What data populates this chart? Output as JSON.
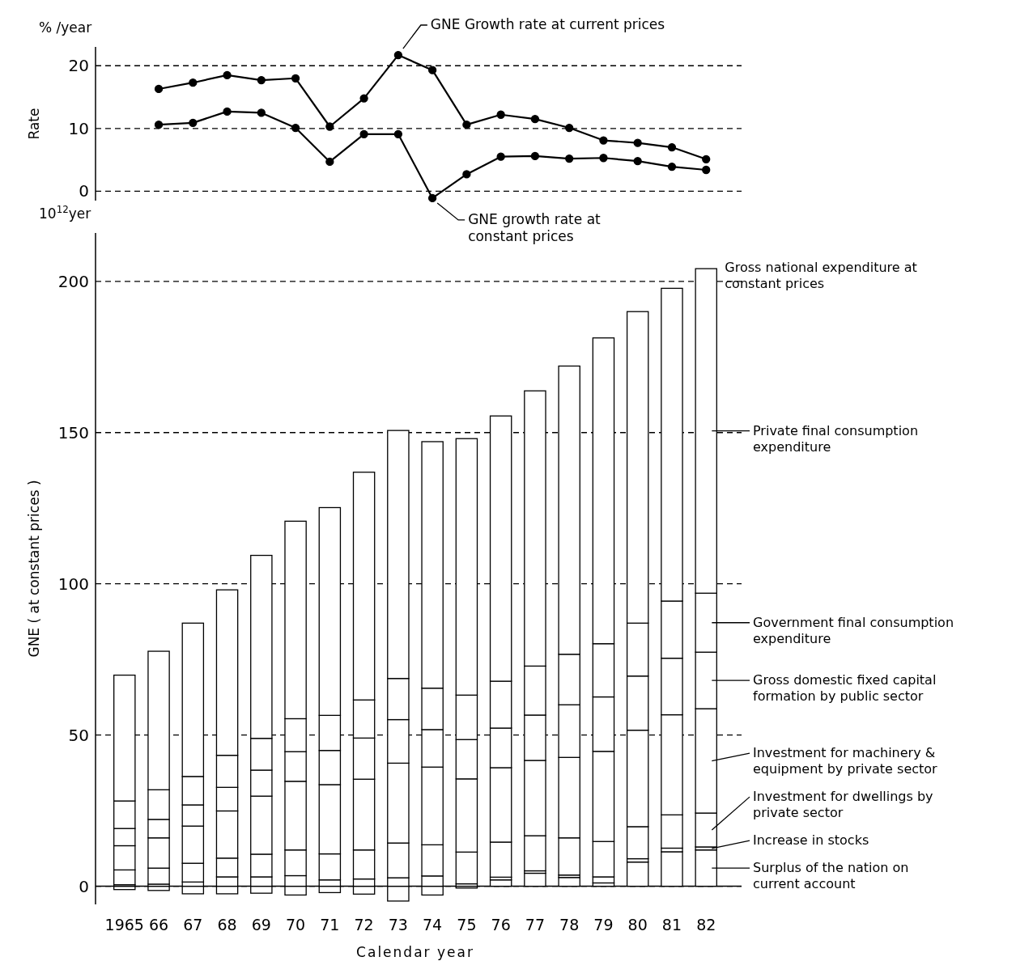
{
  "chart_data": [
    {
      "type": "line",
      "ylabel": "Rate",
      "annotations": [
        "% /year"
      ],
      "categories": [
        null,
        null,
        null,
        null,
        null,
        null,
        null,
        null,
        null,
        null,
        null,
        null,
        null,
        null,
        null,
        null,
        null,
        null
      ],
      "series": [
        {
          "name": "GNE Growth rate at current prices",
          "color": "#000000",
          "values": [
            null,
            16.3,
            17.3,
            18.5,
            17.7,
            18.0,
            10.3,
            14.8,
            21.7,
            19.3,
            10.6,
            12.2,
            11.5,
            10.1,
            8.1,
            7.7,
            7.0,
            5.1
          ]
        },
        {
          "name": "GNE growth rate at constant prices",
          "color": "#000000",
          "values": [
            null,
            10.6,
            10.9,
            12.7,
            12.5,
            10.1,
            4.7,
            9.1,
            9.1,
            -1.1,
            2.7,
            5.5,
            5.6,
            5.2,
            5.3,
            4.8,
            3.9,
            3.4
          ]
        }
      ],
      "ylim": [
        -1.5,
        23
      ],
      "yticks": [
        0,
        10,
        20
      ],
      "grid": "y",
      "marker": "circle",
      "tick_labels": "y"
    },
    {
      "type": "bar",
      "stacked": true,
      "xlabel": "Calendar year",
      "ylabel": "GNE ( at constant prices )",
      "annotations": [
        "10$^{12}$yer",
        {
          "text": "Gross national expenditure at constant prices",
          "x": "82",
          "y": 204.2
        }
      ],
      "categories": [
        "1965",
        "66",
        "67",
        "68",
        "69",
        "70",
        "71",
        "72",
        "73",
        "74",
        "75",
        "76",
        "77",
        "78",
        "79",
        "80",
        "81",
        "82"
      ],
      "series": [
        {
          "name": "Surplus of the nation on current account",
          "color": "#ffffff",
          "values": [
            -1.1,
            -1.4,
            -2.5,
            -2.5,
            -2.3,
            -2.9,
            -2.1,
            -2.6,
            -4.9,
            -2.9,
            -0.6,
            2.1,
            4.3,
            2.9,
            1.1,
            8.0,
            11.4,
            12.0
          ]
        },
        {
          "name": "Increase in stocks",
          "color": "#ffffff",
          "values": [
            0.5,
            0.7,
            1.4,
            3.1,
            3.1,
            3.5,
            2.1,
            2.4,
            2.8,
            3.4,
            0.8,
            0.9,
            0.8,
            0.8,
            2.0,
            1.1,
            1.2,
            1.0
          ]
        },
        {
          "name": "Investment for dwellings by private sector",
          "color": "#ffffff",
          "values": [
            4.9,
            5.3,
            6.2,
            6.2,
            7.5,
            8.5,
            8.6,
            9.6,
            11.5,
            10.3,
            10.5,
            11.6,
            11.6,
            12.3,
            11.7,
            10.6,
            11.0,
            11.2
          ]
        },
        {
          "name": "Investment for machinery & equipment by private sector",
          "color": "#ffffff",
          "values": [
            8.0,
            10.0,
            12.3,
            15.6,
            19.2,
            22.7,
            22.9,
            23.4,
            26.4,
            25.7,
            24.2,
            24.6,
            24.9,
            26.6,
            29.8,
            31.9,
            33.1,
            34.5
          ]
        },
        {
          "name": "Gross domestic fixed capital formation by public sector",
          "color": "#ffffff",
          "values": [
            5.7,
            6.1,
            7.0,
            7.8,
            8.6,
            9.8,
            11.3,
            13.6,
            14.4,
            12.4,
            13.0,
            13.1,
            15.0,
            17.4,
            18.0,
            17.9,
            18.7,
            18.7
          ]
        },
        {
          "name": "Government final consumption expenditure",
          "color": "#ffffff",
          "values": [
            9.1,
            9.8,
            9.4,
            10.6,
            10.5,
            10.9,
            11.6,
            12.6,
            13.6,
            13.7,
            14.7,
            15.5,
            16.2,
            16.7,
            17.6,
            17.5,
            18.9,
            19.5
          ]
        },
        {
          "name": "Private final consumption expenditure",
          "color": "#ffffff",
          "values": [
            41.6,
            45.8,
            50.7,
            54.7,
            60.5,
            65.3,
            68.7,
            75.3,
            82.0,
            81.5,
            84.8,
            87.7,
            91.0,
            95.3,
            101.1,
            103.0,
            103.4,
            107.3
          ]
        }
      ],
      "ylim": [
        -6,
        216
      ],
      "yticks": [
        0,
        50,
        100,
        150,
        200
      ],
      "grid": "y",
      "legend": "right"
    }
  ]
}
